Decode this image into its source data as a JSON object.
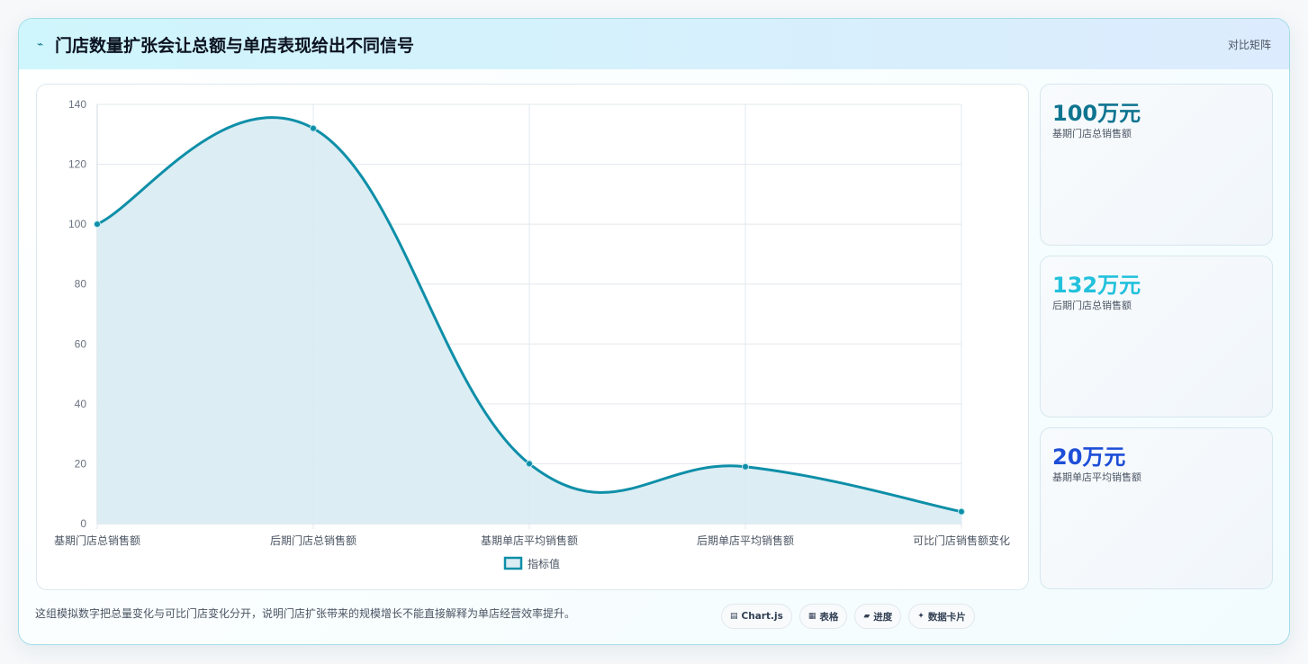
{
  "header": {
    "icon": "trend-icon",
    "title": "门店数量扩张会让总额与单店表现给出不同信号",
    "right_label": "对比矩阵"
  },
  "chart_data": {
    "type": "area",
    "categories": [
      "基期门店总销售额",
      "后期门店总销售额",
      "基期单店平均销售额",
      "后期单店平均销售额",
      "可比门店销售额变化"
    ],
    "series": [
      {
        "name": "指标值",
        "values": [
          100,
          132,
          20,
          19,
          4
        ]
      }
    ],
    "ylim": [
      0,
      140
    ],
    "yticks": [
      0,
      20,
      40,
      60,
      80,
      100,
      120,
      140
    ],
    "grid": true,
    "legend_position": "bottom",
    "colors": {
      "line": "#0e8fa8",
      "fill": "#dbecf3",
      "grid": "#e3e8ee",
      "tick": "#6b7280"
    }
  },
  "stats": [
    {
      "value": "100万元",
      "label": "基期门店总销售额",
      "color": "#0e7490"
    },
    {
      "value": "132万元",
      "label": "后期门店总销售额",
      "color": "#22c1dc"
    },
    {
      "value": "20万元",
      "label": "基期单店平均销售额",
      "color": "#1d4ed8"
    }
  ],
  "footnote": "这组模拟数字把总量变化与可比门店变化分开，说明门店扩张带来的规模增长不能直接解释为单店经营效率提升。",
  "pills": [
    {
      "icon": "chart-icon",
      "glyph": "▤",
      "label": "Chart.js"
    },
    {
      "icon": "table-icon",
      "glyph": "▦",
      "label": "表格"
    },
    {
      "icon": "progress-icon",
      "glyph": "▰",
      "label": "进度"
    },
    {
      "icon": "sparkle-icon",
      "glyph": "✦",
      "label": "数据卡片"
    }
  ]
}
